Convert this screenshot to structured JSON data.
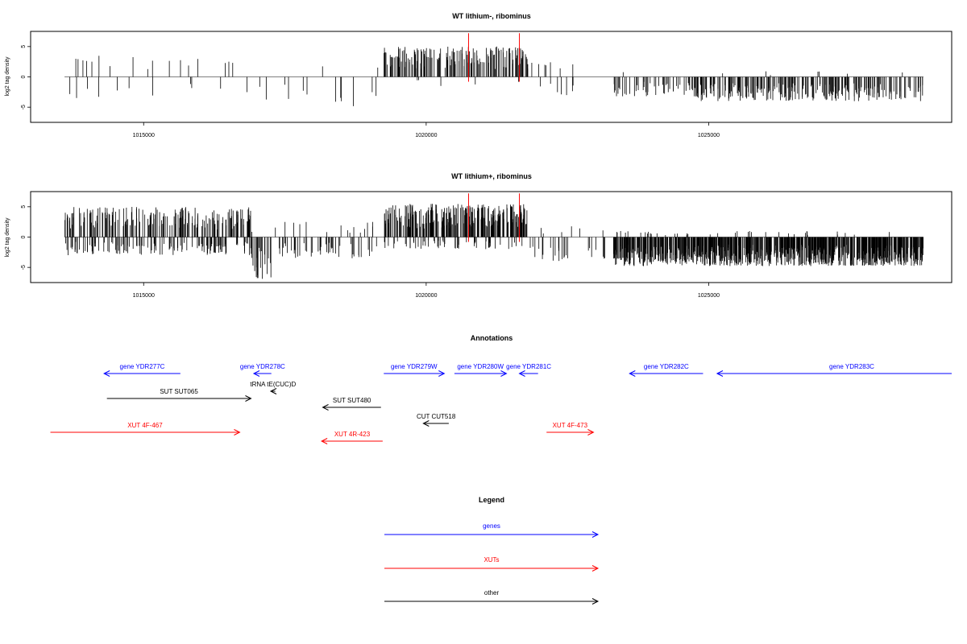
{
  "chart_data": [
    {
      "type": "bar",
      "title": "WT lithium-, ribominus",
      "ylabel": "log2 tag density",
      "xlim": [
        1013000,
        1029300
      ],
      "ylim": [
        -7.5,
        7.5
      ],
      "yticks": [
        "-5",
        "0",
        "5"
      ],
      "xticks": [
        "1015000",
        "1020000",
        "1025000"
      ],
      "grid": false,
      "highlight": [
        {
          "x": 1020750,
          "value": 7.2,
          "color": "#ff0000"
        },
        {
          "x": 1021650,
          "value": 7.2,
          "color": "#ff0000"
        }
      ],
      "segments": [
        {
          "start": 1013600,
          "end": 1016900,
          "count": 28,
          "pos_prob": 0.55,
          "pos_max": 3.5,
          "neg_max": 3.5
        },
        {
          "start": 1017000,
          "end": 1019150,
          "count": 14,
          "pos_prob": 0.15,
          "pos_max": 2.0,
          "neg_max": 5.0
        },
        {
          "start": 1019250,
          "end": 1021800,
          "count": 170,
          "pos_prob": 0.98,
          "pos_max": 5.0,
          "neg_max": 1.5
        },
        {
          "start": 1021800,
          "end": 1022600,
          "count": 14,
          "pos_prob": 0.3,
          "pos_max": 2.5,
          "neg_max": 3.0
        },
        {
          "start": 1023300,
          "end": 1024700,
          "count": 45,
          "pos_prob": 0.03,
          "pos_max": 1.0,
          "neg_max": 3.2
        },
        {
          "start": 1024700,
          "end": 1028800,
          "count": 260,
          "pos_prob": 0.01,
          "pos_max": 1.0,
          "neg_max": 4.0
        }
      ]
    },
    {
      "type": "bar",
      "title": "WT lithium+, ribominus",
      "ylabel": "log2 tag density",
      "xlim": [
        1013000,
        1029300
      ],
      "ylim": [
        -7.5,
        7.5
      ],
      "yticks": [
        "-5",
        "0",
        "5"
      ],
      "xticks": [
        "1015000",
        "1020000",
        "1025000"
      ],
      "grid": false,
      "highlight": [
        {
          "x": 1020750,
          "value": 7.2,
          "color": "#ff0000"
        },
        {
          "x": 1021650,
          "value": 7.2,
          "color": "#ff0000"
        }
      ],
      "segments": [
        {
          "start": 1013600,
          "end": 1016900,
          "count": 330,
          "pos_prob": 0.62,
          "pos_max": 5.0,
          "neg_max": 3.0
        },
        {
          "start": 1016900,
          "end": 1017300,
          "count": 22,
          "pos_prob": 0.05,
          "pos_max": 1.0,
          "neg_max": 7.0
        },
        {
          "start": 1017300,
          "end": 1019150,
          "count": 60,
          "pos_prob": 0.25,
          "pos_max": 2.5,
          "neg_max": 3.5
        },
        {
          "start": 1019250,
          "end": 1021800,
          "count": 320,
          "pos_prob": 0.82,
          "pos_max": 5.5,
          "neg_max": 2.0
        },
        {
          "start": 1021800,
          "end": 1023200,
          "count": 30,
          "pos_prob": 0.25,
          "pos_max": 2.0,
          "neg_max": 4.0
        },
        {
          "start": 1023300,
          "end": 1028800,
          "count": 900,
          "pos_prob": 0.04,
          "pos_max": 1.0,
          "neg_max": 4.8
        }
      ]
    }
  ],
  "annotations": {
    "title": "Annotations",
    "items": [
      {
        "label": "gene YDR277C",
        "start": 1014300,
        "end": 1015650,
        "strand": "-",
        "row": 0,
        "color": "#0000ff"
      },
      {
        "label": "gene YDR278C",
        "start": 1016950,
        "end": 1017260,
        "strand": "-",
        "row": 0,
        "color": "#0000ff"
      },
      {
        "label": "gene YDR279W",
        "start": 1019250,
        "end": 1020320,
        "strand": "+",
        "row": 0,
        "color": "#0000ff"
      },
      {
        "label": "gene YDR280W",
        "start": 1020500,
        "end": 1021420,
        "strand": "+",
        "row": 0,
        "color": "#0000ff"
      },
      {
        "label": "gene YDR281C",
        "start": 1021650,
        "end": 1021980,
        "strand": "-",
        "row": 0,
        "color": "#0000ff"
      },
      {
        "label": "gene YDR282C",
        "start": 1023600,
        "end": 1024900,
        "strand": "-",
        "row": 0,
        "color": "#0000ff"
      },
      {
        "label": "gene YDR283C",
        "start": 1025150,
        "end": 1029300,
        "strand": "-",
        "row": 0,
        "color": "#0000ff"
      },
      {
        "label": "tRNA tE(CUC)D",
        "start": 1017250,
        "end": 1017330,
        "strand": "-",
        "row": 1,
        "color": "#000000"
      },
      {
        "label": "SUT SUT065",
        "start": 1014350,
        "end": 1016900,
        "strand": "+",
        "row": 2,
        "color": "#000000"
      },
      {
        "label": "SUT SUT480",
        "start": 1018170,
        "end": 1019200,
        "strand": "-",
        "row": 3,
        "color": "#000000"
      },
      {
        "label": "CUT CUT518",
        "start": 1019950,
        "end": 1020400,
        "strand": "-",
        "row": 4,
        "color": "#000000"
      },
      {
        "label": "XUT 4F-467",
        "start": 1013350,
        "end": 1016700,
        "strand": "+",
        "row": 5,
        "color": "#ff0000"
      },
      {
        "label": "XUT 4R-423",
        "start": 1018150,
        "end": 1019230,
        "strand": "-",
        "row": 6,
        "color": "#ff0000"
      },
      {
        "label": "XUT 4F-473",
        "start": 1022130,
        "end": 1022960,
        "strand": "+",
        "row": 5,
        "color": "#ff0000"
      }
    ]
  },
  "legend": {
    "title": "Legend",
    "items": [
      {
        "label": "genes",
        "color": "#0000ff"
      },
      {
        "label": "XUTs",
        "color": "#ff0000"
      },
      {
        "label": "other",
        "color": "#000000"
      }
    ]
  }
}
